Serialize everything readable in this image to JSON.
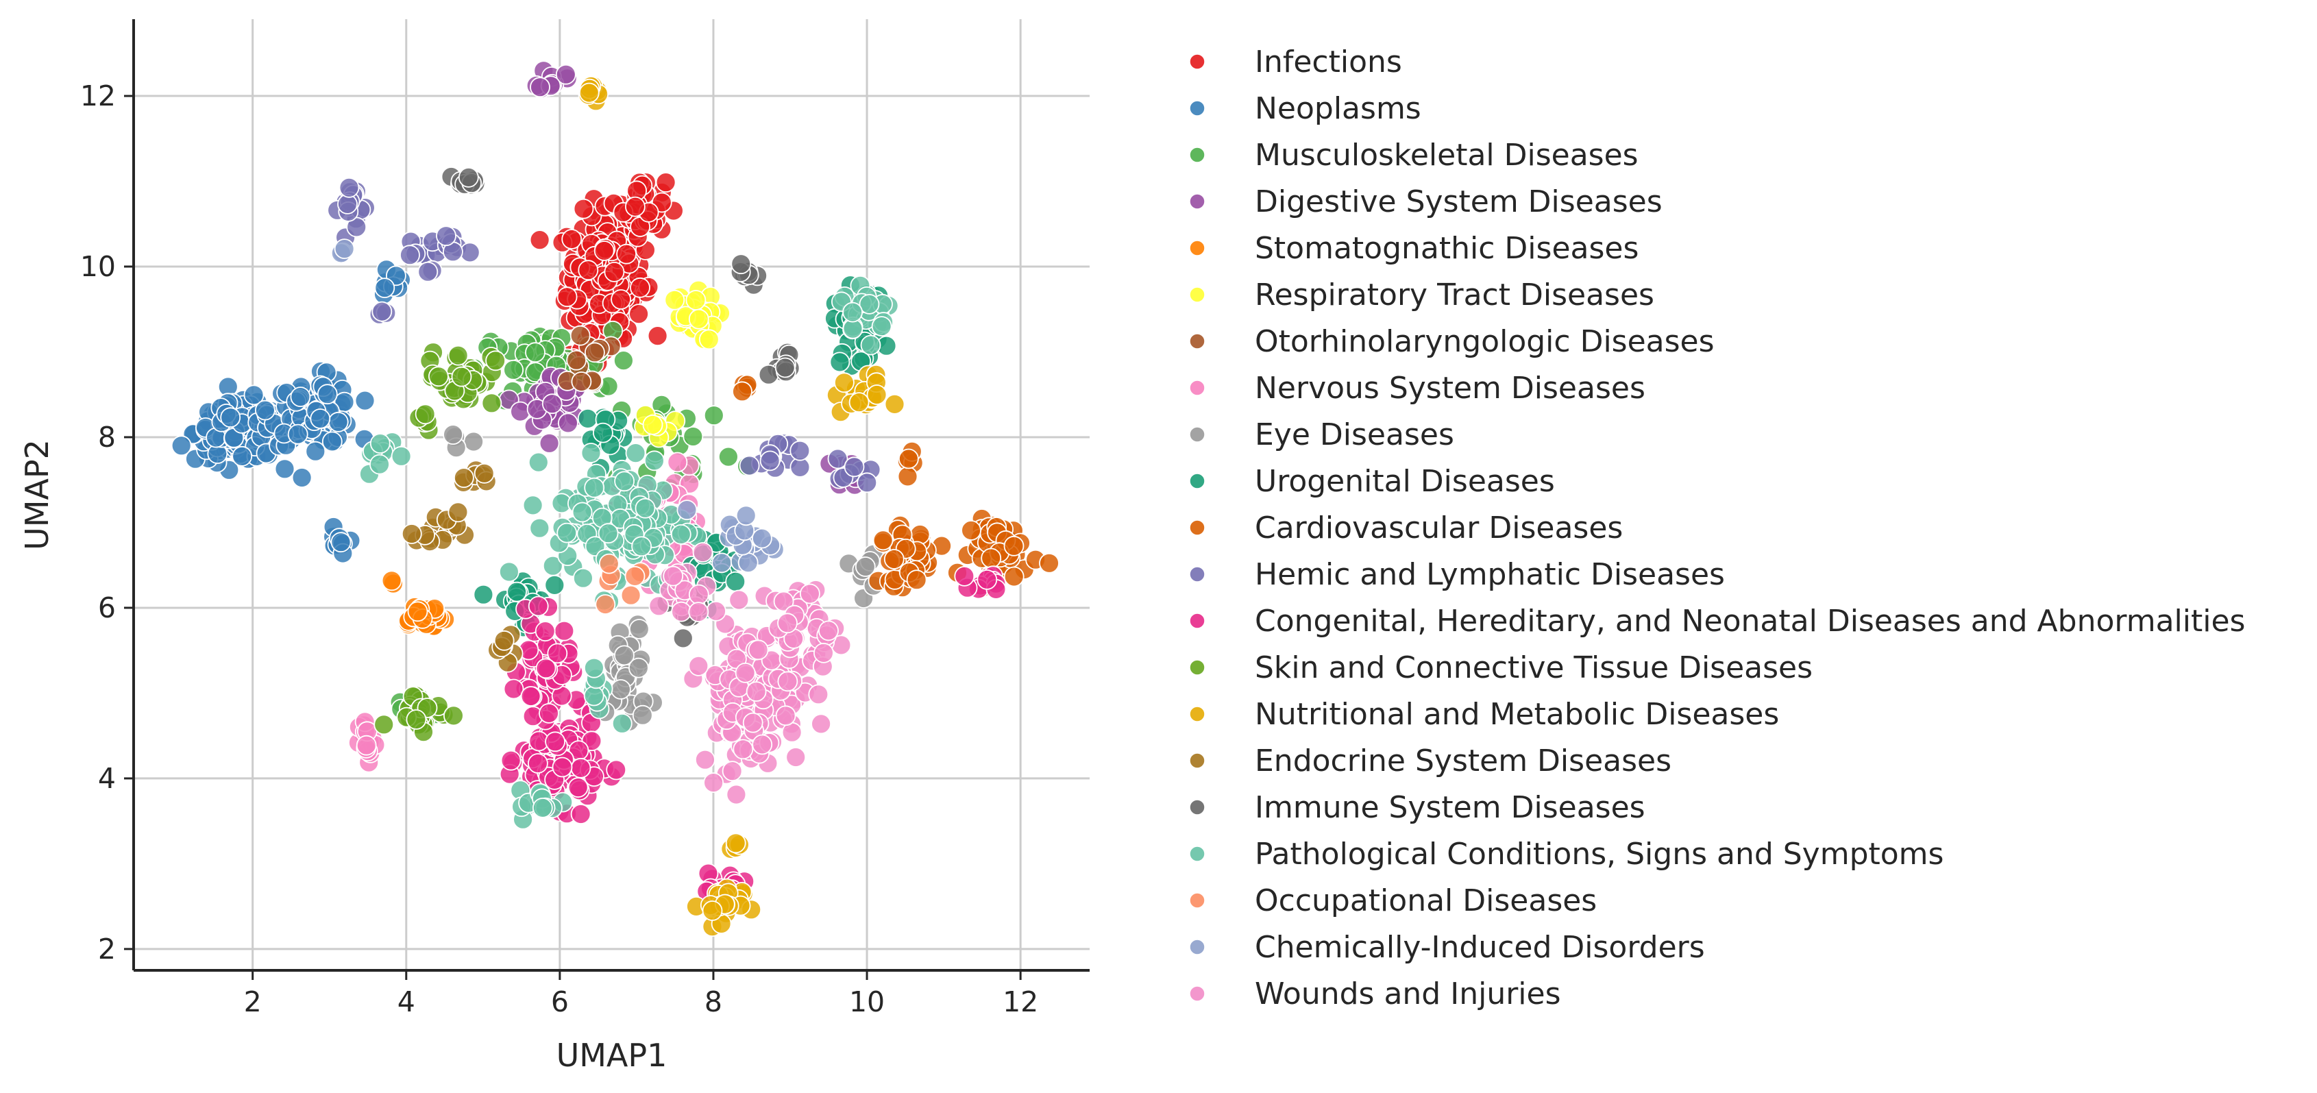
{
  "chart_data": {
    "type": "scatter",
    "title": "",
    "xlabel": "UMAP1",
    "ylabel": "UMAP2",
    "xlim": [
      0.45,
      12.9
    ],
    "ylim": [
      1.75,
      12.9
    ],
    "xticks": [
      2,
      4,
      6,
      8,
      10,
      12
    ],
    "yticks": [
      2,
      4,
      6,
      8,
      10,
      12
    ],
    "grid": true,
    "legend_position": "right",
    "series": [
      {
        "name": "Infections",
        "color": "#e41a1c",
        "clusters": [
          [
            6.6,
            9.9,
            0.45,
            0.65,
            220
          ],
          [
            7.1,
            10.7,
            0.25,
            0.3,
            40
          ],
          [
            6.2,
            8.9,
            0.4,
            0.25,
            25
          ]
        ]
      },
      {
        "name": "Neoplasms",
        "color": "#377eb8",
        "clusters": [
          [
            1.8,
            8.05,
            0.5,
            0.3,
            150
          ],
          [
            2.8,
            8.3,
            0.5,
            0.35,
            100
          ],
          [
            3.1,
            6.7,
            0.1,
            0.2,
            10
          ],
          [
            3.8,
            9.8,
            0.2,
            0.2,
            8
          ]
        ]
      },
      {
        "name": "Musculoskeletal Diseases",
        "color": "#4daf4a",
        "clusters": [
          [
            5.8,
            8.8,
            0.8,
            0.4,
            60
          ],
          [
            4.1,
            4.8,
            0.3,
            0.2,
            15
          ],
          [
            7.5,
            7.9,
            0.8,
            0.7,
            30
          ]
        ]
      },
      {
        "name": "Digestive System Diseases",
        "color": "#984ea3",
        "clusters": [
          [
            5.9,
            8.4,
            0.35,
            0.3,
            45
          ],
          [
            5.9,
            12.2,
            0.15,
            0.12,
            12
          ],
          [
            9.8,
            7.6,
            0.2,
            0.15,
            8
          ]
        ]
      },
      {
        "name": "Stomatognathic Diseases",
        "color": "#ff7f00",
        "clusters": [
          [
            4.2,
            5.9,
            0.3,
            0.15,
            25
          ],
          [
            3.8,
            6.3,
            0.05,
            0.05,
            2
          ]
        ]
      },
      {
        "name": "Respiratory Tract Diseases",
        "color": "#ffff33",
        "clusters": [
          [
            7.7,
            9.4,
            0.3,
            0.25,
            35
          ],
          [
            7.3,
            8.1,
            0.2,
            0.15,
            8
          ]
        ]
      },
      {
        "name": "Otorhinolaryngologic Diseases",
        "color": "#a65628",
        "clusters": [
          [
            6.3,
            8.9,
            0.3,
            0.3,
            12
          ]
        ]
      },
      {
        "name": "Nervous System Diseases",
        "color": "#f781bf",
        "clusters": [
          [
            7.3,
            7.0,
            0.5,
            0.6,
            60
          ],
          [
            3.5,
            4.4,
            0.1,
            0.25,
            15
          ]
        ]
      },
      {
        "name": "Eye Diseases",
        "color": "#999999",
        "clusters": [
          [
            6.9,
            5.2,
            0.25,
            0.6,
            40
          ],
          [
            9.9,
            6.4,
            0.2,
            0.2,
            8
          ],
          [
            4.7,
            8.0,
            0.15,
            0.1,
            4
          ]
        ]
      },
      {
        "name": "Urogenital Diseases",
        "color": "#1b9e77",
        "clusters": [
          [
            9.9,
            9.3,
            0.3,
            0.4,
            40
          ],
          [
            5.5,
            6.1,
            0.3,
            0.25,
            30
          ],
          [
            8.0,
            6.5,
            0.3,
            0.3,
            20
          ],
          [
            6.6,
            8.0,
            0.25,
            0.25,
            15
          ]
        ]
      },
      {
        "name": "Cardiovascular Diseases",
        "color": "#d95f02",
        "clusters": [
          [
            11.8,
            6.7,
            0.4,
            0.3,
            50
          ],
          [
            10.5,
            6.6,
            0.3,
            0.3,
            40
          ],
          [
            10.6,
            7.7,
            0.1,
            0.1,
            5
          ],
          [
            8.4,
            8.6,
            0.1,
            0.1,
            4
          ]
        ]
      },
      {
        "name": "Hemic and Lymphatic Diseases",
        "color": "#7570b3",
        "clusters": [
          [
            3.3,
            10.7,
            0.15,
            0.3,
            18
          ],
          [
            4.3,
            10.2,
            0.35,
            0.2,
            20
          ],
          [
            8.8,
            7.8,
            0.3,
            0.2,
            15
          ],
          [
            9.8,
            7.5,
            0.3,
            0.2,
            8
          ],
          [
            3.7,
            9.45,
            0.05,
            0.05,
            3
          ]
        ]
      },
      {
        "name": "Congenital, Hereditary, and Neonatal Diseases and Abnormalities",
        "color": "#e7298a",
        "clusters": [
          [
            6.0,
            4.2,
            0.45,
            0.45,
            130
          ],
          [
            5.8,
            5.3,
            0.3,
            0.5,
            60
          ],
          [
            8.1,
            2.7,
            0.25,
            0.2,
            20
          ],
          [
            11.6,
            6.3,
            0.2,
            0.1,
            10
          ]
        ]
      },
      {
        "name": "Skin and Connective Tissue Diseases",
        "color": "#66a61e",
        "clusters": [
          [
            4.7,
            8.7,
            0.4,
            0.3,
            35
          ],
          [
            4.2,
            4.8,
            0.35,
            0.2,
            25
          ],
          [
            4.2,
            8.2,
            0.1,
            0.1,
            6
          ]
        ]
      },
      {
        "name": "Nutritional and Metabolic Diseases",
        "color": "#e6ab02",
        "clusters": [
          [
            8.1,
            2.5,
            0.25,
            0.25,
            25
          ],
          [
            9.9,
            8.5,
            0.3,
            0.2,
            20
          ],
          [
            6.4,
            12.0,
            0.1,
            0.12,
            8
          ],
          [
            8.3,
            3.2,
            0.1,
            0.1,
            4
          ]
        ]
      },
      {
        "name": "Endocrine System Diseases",
        "color": "#a6761d",
        "clusters": [
          [
            4.4,
            6.9,
            0.25,
            0.2,
            15
          ],
          [
            4.9,
            7.5,
            0.15,
            0.1,
            8
          ],
          [
            5.3,
            5.5,
            0.2,
            0.2,
            8
          ]
        ]
      },
      {
        "name": "Immune System Diseases",
        "color": "#666666",
        "clusters": [
          [
            4.8,
            11.0,
            0.15,
            0.06,
            10
          ],
          [
            8.4,
            9.9,
            0.15,
            0.15,
            8
          ],
          [
            8.9,
            8.85,
            0.2,
            0.15,
            10
          ],
          [
            7.7,
            6.0,
            0.3,
            0.3,
            10
          ]
        ]
      },
      {
        "name": "Pathological Conditions, Signs and Symptoms",
        "color": "#66c2a5",
        "clusters": [
          [
            6.8,
            7.0,
            0.8,
            0.7,
            120
          ],
          [
            10.0,
            9.5,
            0.3,
            0.3,
            25
          ],
          [
            5.8,
            3.7,
            0.3,
            0.15,
            15
          ],
          [
            3.7,
            7.8,
            0.2,
            0.2,
            10
          ],
          [
            6.5,
            5.0,
            0.2,
            0.3,
            10
          ]
        ]
      },
      {
        "name": "Occupational Diseases",
        "color": "#fc8d62",
        "clusters": [
          [
            6.9,
            6.3,
            0.3,
            0.3,
            8
          ]
        ]
      },
      {
        "name": "Chemically-Induced Disorders",
        "color": "#8da0cb",
        "clusters": [
          [
            8.4,
            6.8,
            0.4,
            0.3,
            20
          ],
          [
            3.2,
            10.2,
            0.05,
            0.05,
            3
          ]
        ]
      },
      {
        "name": "Wounds and Injuries",
        "color": "#f28cc8",
        "clusters": [
          [
            8.5,
            5.0,
            0.6,
            0.8,
            150
          ],
          [
            9.2,
            5.8,
            0.4,
            0.4,
            40
          ],
          [
            7.6,
            6.2,
            0.3,
            0.3,
            20
          ]
        ]
      }
    ]
  }
}
